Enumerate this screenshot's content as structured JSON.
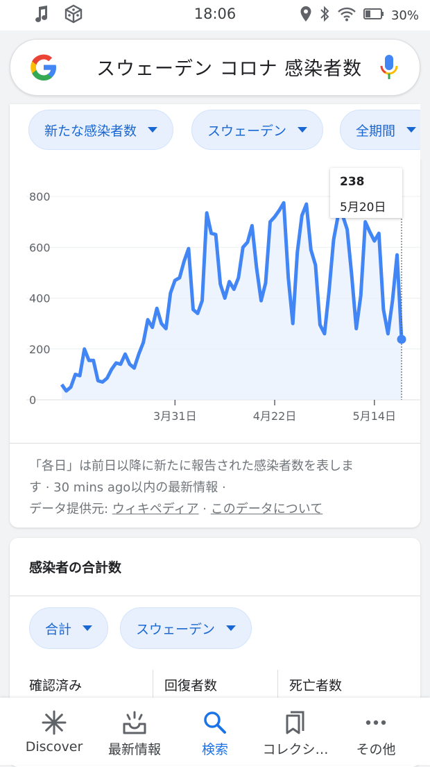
{
  "status_bar": {
    "time": "18:06",
    "battery": "30%"
  },
  "search": {
    "query": "スウェーデン コロナ 感染者数"
  },
  "filters": {
    "metric": "新たな感染者数",
    "region": "スウェーデン",
    "period": "全期間"
  },
  "tooltip": {
    "value": "238",
    "date": "5月20日"
  },
  "chart_data": {
    "type": "area",
    "title": "",
    "xlabel": "",
    "ylabel": "",
    "ylim": [
      0,
      800
    ],
    "y_ticks": [
      "0",
      "200",
      "400",
      "600",
      "800"
    ],
    "x_ticks": [
      "3月31日",
      "4月22日",
      "5月14日"
    ],
    "x_tick_index": [
      25,
      47,
      69
    ],
    "grid": true,
    "series": [
      {
        "values": [
          60,
          35,
          50,
          100,
          95,
          200,
          155,
          155,
          75,
          70,
          85,
          120,
          145,
          140,
          180,
          140,
          125,
          180,
          225,
          315,
          285,
          360,
          300,
          280,
          420,
          470,
          480,
          545,
          595,
          355,
          340,
          390,
          735,
          655,
          650,
          455,
          400,
          465,
          435,
          480,
          600,
          620,
          685,
          520,
          390,
          460,
          700,
          720,
          745,
          775,
          480,
          300,
          580,
          725,
          770,
          590,
          530,
          295,
          260,
          430,
          630,
          725,
          725,
          670,
          490,
          280,
          410,
          700,
          660,
          625,
          655,
          355,
          260,
          390,
          570,
          238
        ]
      }
    ]
  },
  "note": {
    "text": "「各日」は前日以降に新たに報告された感染者数を表しま",
    "text2": "す · 30 mins ago以内の最新情報 ·",
    "source_label": "データ提供元:",
    "source_link": "ウィキペディア",
    "sep": "·",
    "about_link": "このデータについて"
  },
  "totals": {
    "title": "感染者の合計数",
    "chip_total": "合計",
    "chip_region": "スウェーデン",
    "columns": [
      "確認済み",
      "回復者数",
      "死亡者数"
    ]
  },
  "nav": {
    "items": [
      {
        "label": "Discover",
        "icon": "asterisk-icon"
      },
      {
        "label": "最新情報",
        "icon": "inbox-updates-icon"
      },
      {
        "label": "検索",
        "icon": "search-icon"
      },
      {
        "label": "コレクシ…",
        "icon": "collections-icon"
      },
      {
        "label": "その他",
        "icon": "more-dots-icon"
      }
    ]
  },
  "colors": {
    "accent": "#1a73e8",
    "line": "#4285f4",
    "chip_bg": "#e8f0fe"
  }
}
